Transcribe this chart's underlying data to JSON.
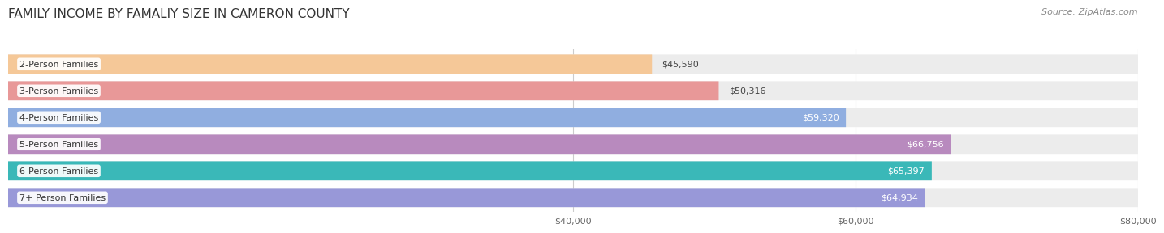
{
  "title": "FAMILY INCOME BY FAMALIY SIZE IN CAMERON COUNTY",
  "source": "Source: ZipAtlas.com",
  "categories": [
    "2-Person Families",
    "3-Person Families",
    "4-Person Families",
    "5-Person Families",
    "6-Person Families",
    "7+ Person Families"
  ],
  "values": [
    45590,
    50316,
    59320,
    66756,
    65397,
    64934
  ],
  "bar_colors": [
    "#f5c898",
    "#e89898",
    "#90aee0",
    "#b88abe",
    "#3ab8b8",
    "#9898d8"
  ],
  "bar_bg_color": "#ececec",
  "xmin": 0,
  "xmax": 80000,
  "xticks": [
    40000,
    60000,
    80000
  ],
  "xlabels": [
    "$40,000",
    "$60,000",
    "$80,000"
  ],
  "title_fontsize": 11,
  "source_fontsize": 8,
  "category_fontsize": 8,
  "value_label_fontsize": 8,
  "background_color": "#ffffff",
  "grid_color": "#cccccc",
  "bar_height": 0.72
}
